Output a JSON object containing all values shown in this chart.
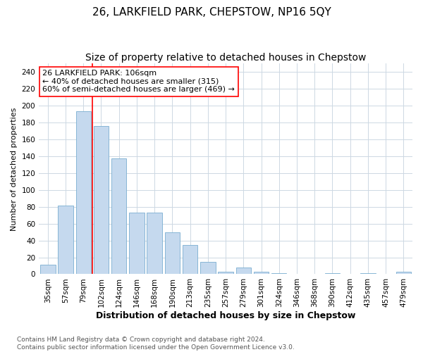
{
  "title": "26, LARKFIELD PARK, CHEPSTOW, NP16 5QY",
  "subtitle": "Size of property relative to detached houses in Chepstow",
  "xlabel": "Distribution of detached houses by size in Chepstow",
  "ylabel": "Number of detached properties",
  "footer_line1": "Contains HM Land Registry data © Crown copyright and database right 2024.",
  "footer_line2": "Contains public sector information licensed under the Open Government Licence v3.0.",
  "bar_labels": [
    "35sqm",
    "57sqm",
    "79sqm",
    "102sqm",
    "124sqm",
    "146sqm",
    "168sqm",
    "190sqm",
    "213sqm",
    "235sqm",
    "257sqm",
    "279sqm",
    "301sqm",
    "324sqm",
    "346sqm",
    "368sqm",
    "390sqm",
    "412sqm",
    "435sqm",
    "457sqm",
    "479sqm"
  ],
  "bar_values": [
    11,
    81,
    193,
    176,
    137,
    73,
    73,
    50,
    35,
    15,
    3,
    8,
    3,
    1,
    0,
    0,
    1,
    0,
    1,
    0,
    3
  ],
  "bar_color": "#c5d9ee",
  "bar_edge_color": "#7aaed0",
  "annotation_text": "26 LARKFIELD PARK: 106sqm\n← 40% of detached houses are smaller (315)\n60% of semi-detached houses are larger (469) →",
  "annotation_box_color": "white",
  "annotation_box_edge": "red",
  "red_line_bar_index": 3,
  "ylim": [
    0,
    250
  ],
  "yticks": [
    0,
    20,
    40,
    60,
    80,
    100,
    120,
    140,
    160,
    180,
    200,
    220,
    240
  ],
  "title_fontsize": 11,
  "subtitle_fontsize": 10,
  "xlabel_fontsize": 9,
  "ylabel_fontsize": 8,
  "tick_fontsize": 7.5,
  "annotation_fontsize": 8,
  "footer_fontsize": 6.5,
  "background_color": "#ffffff",
  "grid_color": "#cdd8e3"
}
